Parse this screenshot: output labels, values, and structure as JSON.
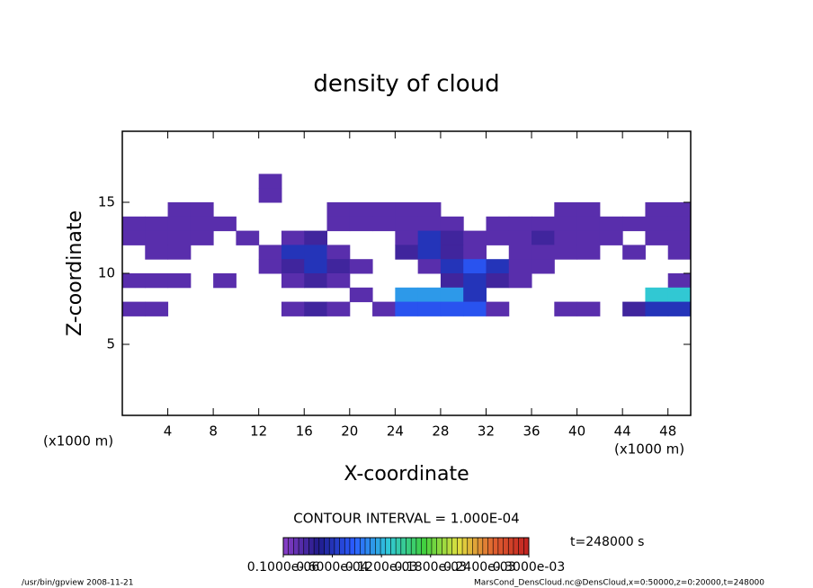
{
  "chart_data": {
    "type": "heatmap",
    "title": "density of cloud",
    "x_label": "X-coordinate",
    "y_label": "Z-coordinate",
    "x_unit_label": "(x1000 m)",
    "xlim": [
      0,
      50
    ],
    "ylim": [
      0,
      20
    ],
    "xticks": [
      4,
      8,
      12,
      16,
      20,
      24,
      28,
      32,
      36,
      40,
      44,
      48
    ],
    "yticks": [
      5,
      10,
      15
    ],
    "x": [
      13,
      13,
      5,
      7,
      19,
      21,
      23,
      25,
      27,
      39,
      41,
      47,
      49,
      1,
      3,
      5,
      7,
      9,
      19,
      21,
      23,
      25,
      27,
      29,
      33,
      35,
      37,
      39,
      41,
      43,
      45,
      47,
      49,
      1,
      3,
      5,
      7,
      11,
      15,
      17,
      25,
      27,
      29,
      31,
      33,
      35,
      37,
      39,
      41,
      43,
      47,
      49,
      3,
      5,
      13,
      15,
      17,
      19,
      25,
      27,
      29,
      31,
      35,
      37,
      39,
      41,
      45,
      49,
      13,
      15,
      17,
      19,
      21,
      27,
      29,
      31,
      33,
      35,
      37,
      1,
      3,
      5,
      9,
      15,
      17,
      19,
      29,
      31,
      33,
      35,
      49,
      21,
      25,
      27,
      29,
      31,
      47,
      49,
      1,
      3,
      15,
      17,
      19,
      23,
      25,
      27,
      29,
      31,
      33,
      39,
      41,
      45,
      47,
      49
    ],
    "y": [
      16.5,
      15.5,
      14.5,
      14.5,
      14.5,
      14.5,
      14.5,
      14.5,
      14.5,
      14.5,
      14.5,
      14.5,
      14.5,
      13.5,
      13.5,
      13.5,
      13.5,
      13.5,
      13.5,
      13.5,
      13.5,
      13.5,
      13.5,
      13.5,
      13.5,
      13.5,
      13.5,
      13.5,
      13.5,
      13.5,
      13.5,
      13.5,
      13.5,
      12.5,
      12.5,
      12.5,
      12.5,
      12.5,
      12.5,
      12.5,
      12.5,
      12.5,
      12.5,
      12.5,
      12.5,
      12.5,
      12.5,
      12.5,
      12.5,
      12.5,
      12.5,
      12.5,
      11.5,
      11.5,
      11.5,
      11.5,
      11.5,
      11.5,
      11.5,
      11.5,
      11.5,
      11.5,
      11.5,
      11.5,
      11.5,
      11.5,
      11.5,
      11.5,
      10.5,
      10.5,
      10.5,
      10.5,
      10.5,
      10.5,
      10.5,
      10.5,
      10.5,
      10.5,
      10.5,
      9.5,
      9.5,
      9.5,
      9.5,
      9.5,
      9.5,
      9.5,
      9.5,
      9.5,
      9.5,
      9.5,
      9.5,
      8.5,
      8.5,
      8.5,
      8.5,
      8.5,
      8.5,
      8.5,
      7.5,
      7.5,
      7.5,
      7.5,
      7.5,
      7.5,
      7.5,
      7.5,
      7.5,
      7.5,
      7.5,
      7.5,
      7.5,
      7.5,
      7.5,
      7.5
    ],
    "values": [
      2e-05,
      2e-05,
      2e-05,
      2e-05,
      2e-05,
      2e-05,
      2e-05,
      2e-05,
      2e-05,
      2e-05,
      2e-05,
      2e-05,
      2e-05,
      2e-05,
      2e-05,
      2e-05,
      2e-05,
      2e-05,
      2e-05,
      2e-05,
      2e-05,
      2e-05,
      2e-05,
      2e-05,
      2e-05,
      2e-05,
      2e-05,
      2e-05,
      2e-05,
      2e-05,
      2e-05,
      2e-05,
      2e-05,
      2e-05,
      2e-05,
      2e-05,
      2e-05,
      2e-05,
      2e-05,
      3e-05,
      2e-05,
      6e-05,
      3e-05,
      2e-05,
      2e-05,
      2e-05,
      3e-05,
      2e-05,
      2e-05,
      2e-05,
      2e-05,
      2e-05,
      2e-05,
      2e-05,
      2e-05,
      6e-05,
      6e-05,
      2e-05,
      3e-05,
      6e-05,
      3e-05,
      2e-05,
      2e-05,
      2e-05,
      2e-05,
      2e-05,
      2e-05,
      2e-05,
      2e-05,
      3e-05,
      6e-05,
      3e-05,
      2e-05,
      2e-05,
      6e-05,
      8e-05,
      6e-05,
      2e-05,
      2e-05,
      2e-05,
      2e-05,
      2e-05,
      2e-05,
      2e-05,
      3e-05,
      2e-05,
      3e-05,
      6e-05,
      3e-05,
      2e-05,
      2e-05,
      2e-05,
      0.00011,
      0.00011,
      0.00011,
      6e-05,
      0.00013,
      0.00013,
      2e-05,
      2e-05,
      2e-05,
      3e-05,
      2e-05,
      2e-05,
      8e-05,
      8e-05,
      8e-05,
      8e-05,
      2e-05,
      2e-05,
      2e-05,
      3e-05,
      6e-05,
      6e-05
    ],
    "zlim": [
      1e-07,
      0.0003
    ],
    "colors": [
      "#8b3fc9",
      "#201a8a",
      "#2a5cff",
      "#30c8d8",
      "#40d040",
      "#e0e040",
      "#e06030",
      "#c02020"
    ],
    "colorbar_ticks": [
      {
        "value": 1e-07,
        "label": "0.1000e-06"
      },
      {
        "value": 6e-05,
        "label": "0.6000e-04"
      },
      {
        "value": 0.00012,
        "label": "0.1200e-03"
      },
      {
        "value": 0.00018,
        "label": "0.1800e-03"
      },
      {
        "value": 0.00024,
        "label": "0.2400e-03"
      },
      {
        "value": 0.0003,
        "label": "0.3000e-03"
      }
    ],
    "contour_interval": "CONTOUR INTERVAL = 1.000E-04",
    "time_label": "t=248000 s",
    "footer_left": "/usr/bin/gpview  2008-11-21",
    "footer_right": "MarsCond_DensCloud.nc@DensCloud,x=0:50000,z=0:20000,t=248000"
  }
}
